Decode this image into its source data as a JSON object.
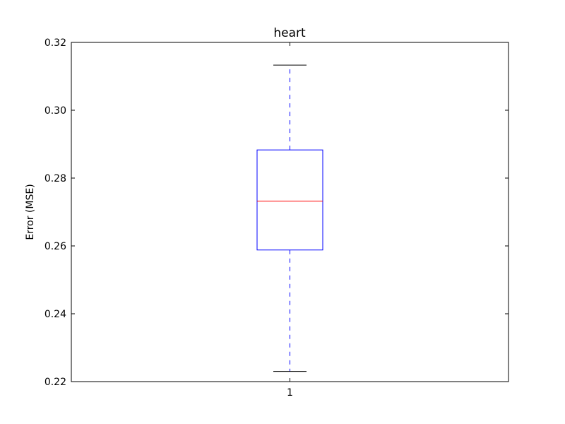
{
  "chart_data": {
    "type": "box",
    "title": "heart",
    "xlabel": "",
    "ylabel": "Error (MSE)",
    "categories": [
      "1"
    ],
    "ylim": [
      0.22,
      0.32
    ],
    "yticks": [
      "0.22",
      "0.24",
      "0.26",
      "0.28",
      "0.30",
      "0.32"
    ],
    "grid": false,
    "series": [
      {
        "whisker_low": 0.223,
        "q1": 0.2588,
        "median": 0.2732,
        "q3": 0.2883,
        "whisker_high": 0.3133
      }
    ],
    "colors": {
      "box": "#0000ff",
      "median": "#ff0000",
      "whisker": "#0000ff",
      "cap": "#000000",
      "axes": "#000000"
    }
  }
}
